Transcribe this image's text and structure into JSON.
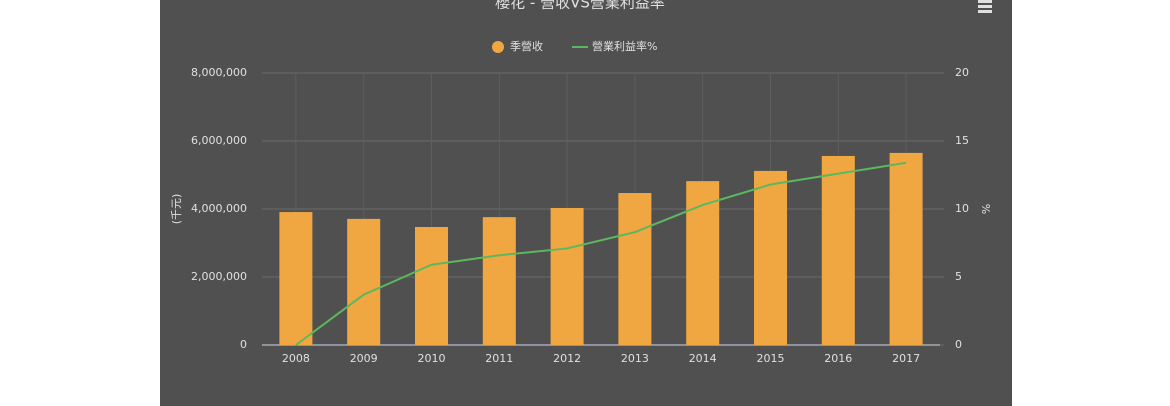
{
  "chart_data": {
    "type": "bar_line",
    "title": "櫻花 - 營收VS營業利益率",
    "y_label": "(千元)",
    "y2_label": "%",
    "categories": [
      "2008",
      "2009",
      "2010",
      "2011",
      "2012",
      "2013",
      "2014",
      "2015",
      "2016",
      "2017"
    ],
    "series": [
      {
        "name": "季營收",
        "type": "bar",
        "color": "#f0a742",
        "values": [
          3910000,
          3710000,
          3470000,
          3760000,
          4030000,
          4470000,
          4820000,
          5120000,
          5560000,
          5650000
        ]
      },
      {
        "name": "營業利益率%",
        "type": "line",
        "axis": "y2",
        "color": "#5cb85c",
        "values": [
          0,
          3.7,
          5.9,
          6.6,
          7.1,
          8.3,
          10.3,
          11.8,
          12.6,
          13.4
        ]
      }
    ],
    "ylim": [
      0,
      8000000
    ],
    "yticks": [
      0,
      {
        "value": 2000000,
        "label": "2,000,000"
      },
      {
        "value": 4000000,
        "label": "4,000,000"
      },
      {
        "value": 6000000,
        "label": "6,000,000"
      },
      {
        "value": 8000000,
        "label": "8,000,000"
      }
    ],
    "y2lim": [
      0,
      20
    ],
    "y2ticks": [
      0,
      5,
      10,
      15,
      20
    ],
    "grid": true,
    "legend": "top"
  }
}
